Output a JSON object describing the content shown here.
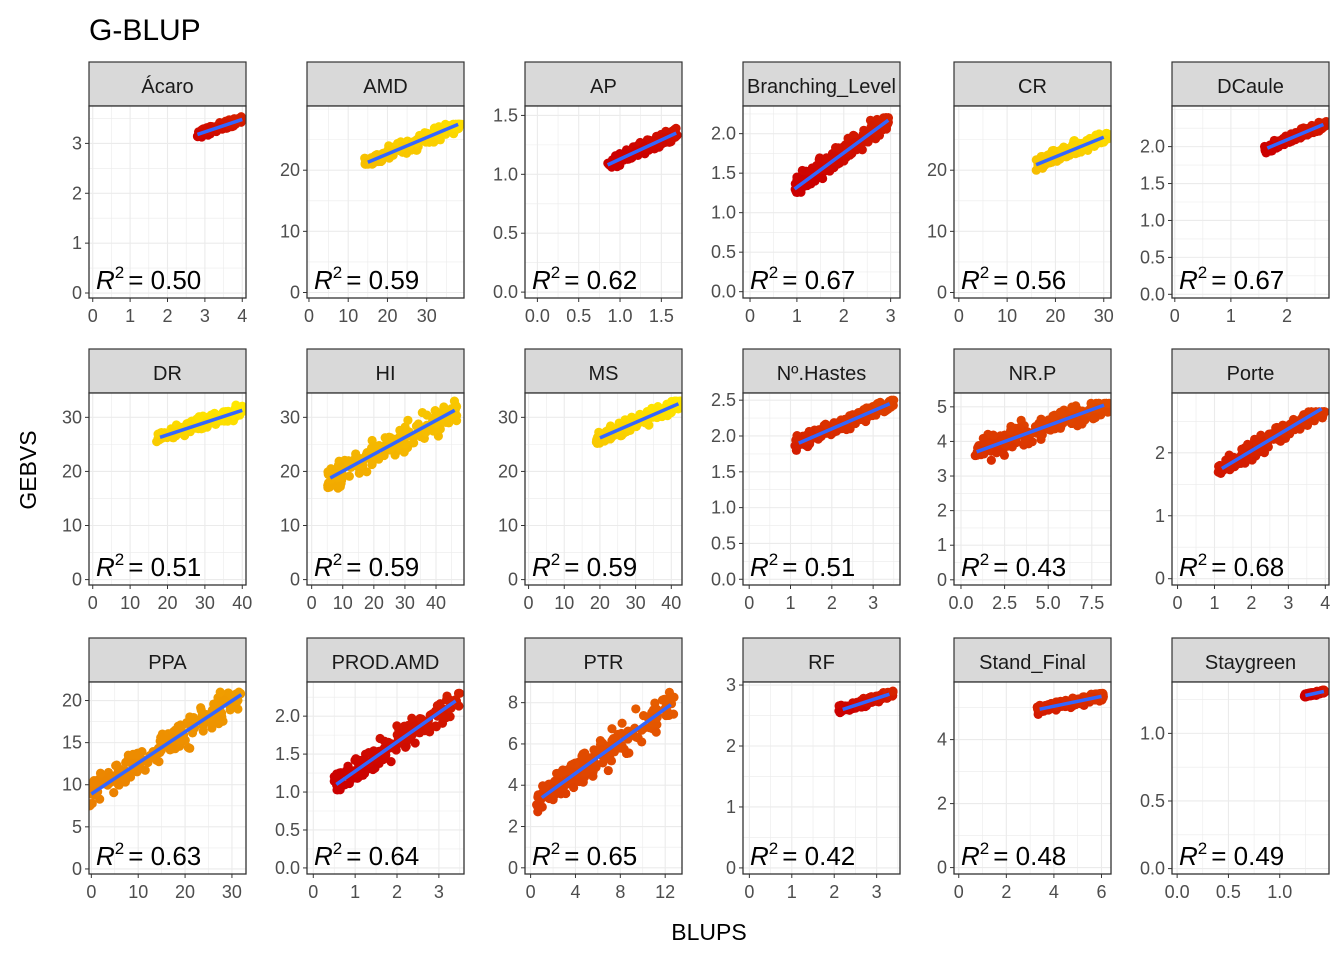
{
  "chart_data": {
    "type": "scatter",
    "title": "G-BLUP",
    "xlabel": "BLUPS",
    "ylabel": "GEBVS",
    "grid": true,
    "facet_layout": "3 rows x 6 columns, free scales",
    "fit_line_color": "#3366ff",
    "point_gradient": [
      "#cc0000",
      "#e65c00",
      "#f0a000",
      "#ffe800"
    ],
    "panels": [
      {
        "name": "Ácaro",
        "r2_label": "= 0.50",
        "xlim": [
          -0.1,
          4.1
        ],
        "ylim": [
          -0.1,
          3.75
        ],
        "xticks": [
          0,
          1,
          2,
          3,
          4
        ],
        "yticks": [
          0,
          1,
          2,
          3
        ],
        "ytick_labels": [
          "0",
          "1",
          "2",
          "3"
        ],
        "xtick_labels": [
          "0",
          "1",
          "2",
          "3",
          "4"
        ],
        "cloud": {
          "x": [
            2.8,
            4.0
          ],
          "y": [
            3.1,
            3.6
          ],
          "spread": 0.06
        },
        "fit": [
          [
            2.8,
            3.18
          ],
          [
            4.0,
            3.48
          ]
        ],
        "hue": 0.05
      },
      {
        "name": "AMD",
        "r2_label": "= 0.59",
        "xlim": [
          -0.5,
          39.5
        ],
        "ylim": [
          -0.9,
          30.5
        ],
        "xticks": [
          0,
          10,
          20,
          30
        ],
        "yticks": [
          0,
          10,
          20
        ],
        "ytick_labels": [
          "0",
          "10",
          "20"
        ],
        "xtick_labels": [
          "0",
          "10",
          "20",
          "30"
        ],
        "cloud": {
          "x": [
            14,
            39
          ],
          "y": [
            21,
            27.5
          ],
          "spread": 0.9
        },
        "fit": [
          [
            15,
            21.3
          ],
          [
            38,
            27.5
          ]
        ],
        "hue": 0.85
      },
      {
        "name": "AP",
        "r2_label": "= 0.62",
        "xlim": [
          -0.15,
          1.75
        ],
        "ylim": [
          -0.05,
          1.58
        ],
        "xticks": [
          0,
          0.5,
          1,
          1.5
        ],
        "yticks": [
          0,
          0.5,
          1,
          1.5
        ],
        "ytick_labels": [
          "0.0",
          "0.5",
          "1.0",
          "1.5"
        ],
        "xtick_labels": [
          "0.0",
          "0.5",
          "1.0",
          "1.5"
        ],
        "cloud": {
          "x": [
            0.85,
            1.7
          ],
          "y": [
            1.05,
            1.45
          ],
          "spread": 0.04
        },
        "fit": [
          [
            0.85,
            1.08
          ],
          [
            1.68,
            1.35
          ]
        ],
        "hue": 0.0
      },
      {
        "name": "Branching_Level",
        "r2_label": "= 0.67",
        "xlim": [
          -0.15,
          3.2
        ],
        "ylim": [
          -0.08,
          2.35
        ],
        "xticks": [
          0,
          1,
          2,
          3
        ],
        "yticks": [
          0,
          0.5,
          1,
          1.5,
          2
        ],
        "ytick_labels": [
          "0.0",
          "0.5",
          "1.0",
          "1.5",
          "2.0"
        ],
        "xtick_labels": [
          "0",
          "1",
          "2",
          "3"
        ],
        "cloud": {
          "x": [
            0.95,
            3.0
          ],
          "y": [
            1.2,
            2.2
          ],
          "spread": 0.12
        },
        "fit": [
          [
            0.95,
            1.3
          ],
          [
            2.95,
            2.17
          ]
        ],
        "hue": 0.02
      },
      {
        "name": "CR",
        "r2_label": "= 0.56",
        "xlim": [
          -1,
          31.5
        ],
        "ylim": [
          -0.9,
          30.5
        ],
        "xticks": [
          0,
          10,
          20,
          30
        ],
        "yticks": [
          0,
          10,
          20
        ],
        "ytick_labels": [
          "0",
          "10",
          "20"
        ],
        "xtick_labels": [
          "0",
          "10",
          "20",
          "30"
        ],
        "cloud": {
          "x": [
            16,
            31
          ],
          "y": [
            20,
            26
          ],
          "spread": 0.9
        },
        "fit": [
          [
            16,
            20.9
          ],
          [
            30,
            25.4
          ]
        ],
        "hue": 0.85
      },
      {
        "name": "DCaule",
        "r2_label": "= 0.67",
        "xlim": [
          -0.05,
          2.75
        ],
        "ylim": [
          -0.05,
          2.55
        ],
        "xticks": [
          0,
          1,
          2
        ],
        "yticks": [
          0,
          0.5,
          1,
          1.5,
          2
        ],
        "ytick_labels": [
          "0.0",
          "0.5",
          "1.0",
          "1.5",
          "2.0"
        ],
        "xtick_labels": [
          "0",
          "1",
          "2"
        ],
        "cloud": {
          "x": [
            1.6,
            2.7
          ],
          "y": [
            1.9,
            2.35
          ],
          "spread": 0.05
        },
        "fit": [
          [
            1.65,
            1.98
          ],
          [
            2.65,
            2.3
          ]
        ],
        "hue": 0.02
      },
      {
        "name": "DR",
        "r2_label": "= 0.51",
        "xlim": [
          -1,
          41
        ],
        "ylim": [
          -1,
          34.5
        ],
        "xticks": [
          0,
          10,
          20,
          30,
          40
        ],
        "yticks": [
          0,
          10,
          20,
          30
        ],
        "ytick_labels": [
          "0",
          "10",
          "20",
          "30"
        ],
        "xtick_labels": [
          "0",
          "10",
          "20",
          "30",
          "40"
        ],
        "cloud": {
          "x": [
            17,
            41
          ],
          "y": [
            25.5,
            32.5
          ],
          "spread": 1.0
        },
        "fit": [
          [
            18,
            26.3
          ],
          [
            40,
            31.3
          ]
        ],
        "hue": 0.92
      },
      {
        "name": "HI",
        "r2_label": "= 0.59",
        "xlim": [
          -1.5,
          49
        ],
        "ylim": [
          -1,
          34.5
        ],
        "xticks": [
          0,
          10,
          20,
          30,
          40
        ],
        "yticks": [
          0,
          10,
          20,
          30
        ],
        "ytick_labels": [
          "0",
          "10",
          "20",
          "30"
        ],
        "xtick_labels": [
          "0",
          "10",
          "20",
          "30",
          "40"
        ],
        "cloud": {
          "x": [
            5,
            47
          ],
          "y": [
            16,
            33
          ],
          "spread": 2.0
        },
        "fit": [
          [
            6,
            18.8
          ],
          [
            46,
            31.3
          ]
        ],
        "hue": 0.75
      },
      {
        "name": "MS",
        "r2_label": "= 0.59",
        "xlim": [
          -1,
          43
        ],
        "ylim": [
          -1,
          34.5
        ],
        "xticks": [
          0,
          10,
          20,
          30,
          40
        ],
        "yticks": [
          0,
          10,
          20,
          30
        ],
        "ytick_labels": [
          "0",
          "10",
          "20",
          "30"
        ],
        "xtick_labels": [
          "0",
          "10",
          "20",
          "30",
          "40"
        ],
        "cloud": {
          "x": [
            19,
            43
          ],
          "y": [
            25,
            33
          ],
          "spread": 1.0
        },
        "fit": [
          [
            20,
            26.2
          ],
          [
            42,
            32.5
          ]
        ],
        "hue": 0.9
      },
      {
        "name": "Nº.Hastes",
        "r2_label": "= 0.51",
        "xlim": [
          -0.15,
          3.65
        ],
        "ylim": [
          -0.08,
          2.6
        ],
        "xticks": [
          0,
          1,
          2,
          3
        ],
        "yticks": [
          0,
          0.5,
          1,
          1.5,
          2,
          2.5
        ],
        "ytick_labels": [
          "0.0",
          "0.5",
          "1.0",
          "1.5",
          "2.0",
          "2.5"
        ],
        "xtick_labels": [
          "0",
          "1",
          "2",
          "3"
        ],
        "cloud": {
          "x": [
            1.1,
            3.5
          ],
          "y": [
            1.8,
            2.5
          ],
          "spread": 0.08
        },
        "fit": [
          [
            1.2,
            1.9
          ],
          [
            3.4,
            2.45
          ]
        ],
        "hue": 0.15
      },
      {
        "name": "NR.P",
        "r2_label": "= 0.43",
        "xlim": [
          -0.4,
          8.6
        ],
        "ylim": [
          -0.15,
          5.4
        ],
        "xticks": [
          0,
          2.5,
          5,
          7.5
        ],
        "yticks": [
          0,
          1,
          2,
          3,
          4,
          5
        ],
        "ytick_labels": [
          "0",
          "1",
          "2",
          "3",
          "4",
          "5"
        ],
        "xtick_labels": [
          "0.0",
          "2.5",
          "5.0",
          "7.5"
        ],
        "cloud": {
          "x": [
            0.8,
            8.5
          ],
          "y": [
            3.0,
            5.1
          ],
          "spread": 0.28
        },
        "fit": [
          [
            0.9,
            3.7
          ],
          [
            8.2,
            5.05
          ]
        ],
        "hue": 0.18
      },
      {
        "name": "Porte",
        "r2_label": "= 0.68",
        "xlim": [
          -0.15,
          4.1
        ],
        "ylim": [
          -0.1,
          2.95
        ],
        "xticks": [
          0,
          1,
          2,
          3,
          4
        ],
        "yticks": [
          0,
          1,
          2
        ],
        "ytick_labels": [
          "0",
          "1",
          "2"
        ],
        "xtick_labels": [
          "0",
          "1",
          "2",
          "3",
          "4"
        ],
        "cloud": {
          "x": [
            1.1,
            4.0
          ],
          "y": [
            1.4,
            2.65
          ],
          "spread": 0.12
        },
        "fit": [
          [
            1.2,
            1.75
          ],
          [
            3.9,
            2.7
          ]
        ],
        "hue": 0.1
      },
      {
        "name": "PPA",
        "r2_label": "= 0.63",
        "xlim": [
          -0.5,
          33
        ],
        "ylim": [
          -0.6,
          22.2
        ],
        "xticks": [
          0,
          10,
          20,
          30
        ],
        "yticks": [
          0,
          5,
          10,
          15,
          20
        ],
        "ytick_labels": [
          "0",
          "5",
          "10",
          "15",
          "20"
        ],
        "xtick_labels": [
          "0",
          "10",
          "20",
          "30"
        ],
        "cloud": {
          "x": [
            -0.5,
            32
          ],
          "y": [
            7.5,
            21
          ],
          "spread": 1.5
        },
        "fit": [
          [
            0,
            8.9
          ],
          [
            32,
            20.7
          ]
        ],
        "hue": 0.55
      },
      {
        "name": "PROD.AMD",
        "r2_label": "= 0.64",
        "xlim": [
          -0.15,
          3.6
        ],
        "ylim": [
          -0.08,
          2.45
        ],
        "xticks": [
          0,
          1,
          2,
          3
        ],
        "yticks": [
          0,
          0.5,
          1,
          1.5,
          2
        ],
        "ytick_labels": [
          "0.0",
          "0.5",
          "1.0",
          "1.5",
          "2.0"
        ],
        "xtick_labels": [
          "0",
          "1",
          "2",
          "3"
        ],
        "cloud": {
          "x": [
            0.5,
            3.5
          ],
          "y": [
            0.9,
            2.3
          ],
          "spread": 0.14
        },
        "fit": [
          [
            0.55,
            1.1
          ],
          [
            3.4,
            2.2
          ]
        ],
        "hue": 0.02
      },
      {
        "name": "PTR",
        "r2_label": "= 0.65",
        "xlim": [
          -0.5,
          13.5
        ],
        "ylim": [
          -0.3,
          9.0
        ],
        "xticks": [
          0,
          4,
          8,
          12
        ],
        "yticks": [
          0,
          2,
          4,
          6,
          8
        ],
        "ytick_labels": [
          "0",
          "2",
          "4",
          "6",
          "8"
        ],
        "xtick_labels": [
          "0",
          "4",
          "8",
          "12"
        ],
        "cloud": {
          "x": [
            0.5,
            12.8
          ],
          "y": [
            2.5,
            8.5
          ],
          "spread": 0.65
        },
        "fit": [
          [
            1,
            3.4
          ],
          [
            12.5,
            7.9
          ]
        ],
        "hue": 0.25
      },
      {
        "name": "RF",
        "r2_label": "= 0.42",
        "xlim": [
          -0.15,
          3.55
        ],
        "ylim": [
          -0.1,
          3.05
        ],
        "xticks": [
          0,
          1,
          2,
          3
        ],
        "yticks": [
          0,
          1,
          2,
          3
        ],
        "ytick_labels": [
          "0",
          "1",
          "2",
          "3"
        ],
        "xtick_labels": [
          "0",
          "1",
          "2",
          "3"
        ],
        "cloud": {
          "x": [
            2.1,
            3.4
          ],
          "y": [
            2.55,
            2.9
          ],
          "spread": 0.05
        },
        "fit": [
          [
            2.2,
            2.6
          ],
          [
            3.3,
            2.85
          ]
        ],
        "hue": 0.03
      },
      {
        "name": "Stand_Final",
        "r2_label": "= 0.48",
        "xlim": [
          -0.2,
          6.4
        ],
        "ylim": [
          -0.2,
          5.8
        ],
        "xticks": [
          0,
          2,
          4,
          6
        ],
        "yticks": [
          0,
          2,
          4
        ],
        "ytick_labels": [
          "0",
          "2",
          "4"
        ],
        "xtick_labels": [
          "0",
          "2",
          "4",
          "6"
        ],
        "cloud": {
          "x": [
            3.3,
            6.1
          ],
          "y": [
            4.75,
            5.5
          ],
          "spread": 0.1
        },
        "fit": [
          [
            3.4,
            4.95
          ],
          [
            6.0,
            5.35
          ]
        ],
        "hue": 0.12
      },
      {
        "name": "Staygreen",
        "r2_label": "= 0.49",
        "xlim": [
          -0.05,
          1.48
        ],
        "ylim": [
          -0.04,
          1.38
        ],
        "xticks": [
          0,
          0.5,
          1
        ],
        "yticks": [
          0,
          0.5,
          1
        ],
        "ytick_labels": [
          "0.0",
          "0.5",
          "1.0"
        ],
        "xtick_labels": [
          "0.0",
          "0.5",
          "1.0"
        ],
        "cloud": {
          "x": [
            1.24,
            1.44
          ],
          "y": [
            1.27,
            1.32
          ],
          "spread": 0.01
        },
        "fit": [
          [
            1.25,
            1.28
          ],
          [
            1.43,
            1.31
          ]
        ],
        "hue": 0.0
      }
    ]
  }
}
